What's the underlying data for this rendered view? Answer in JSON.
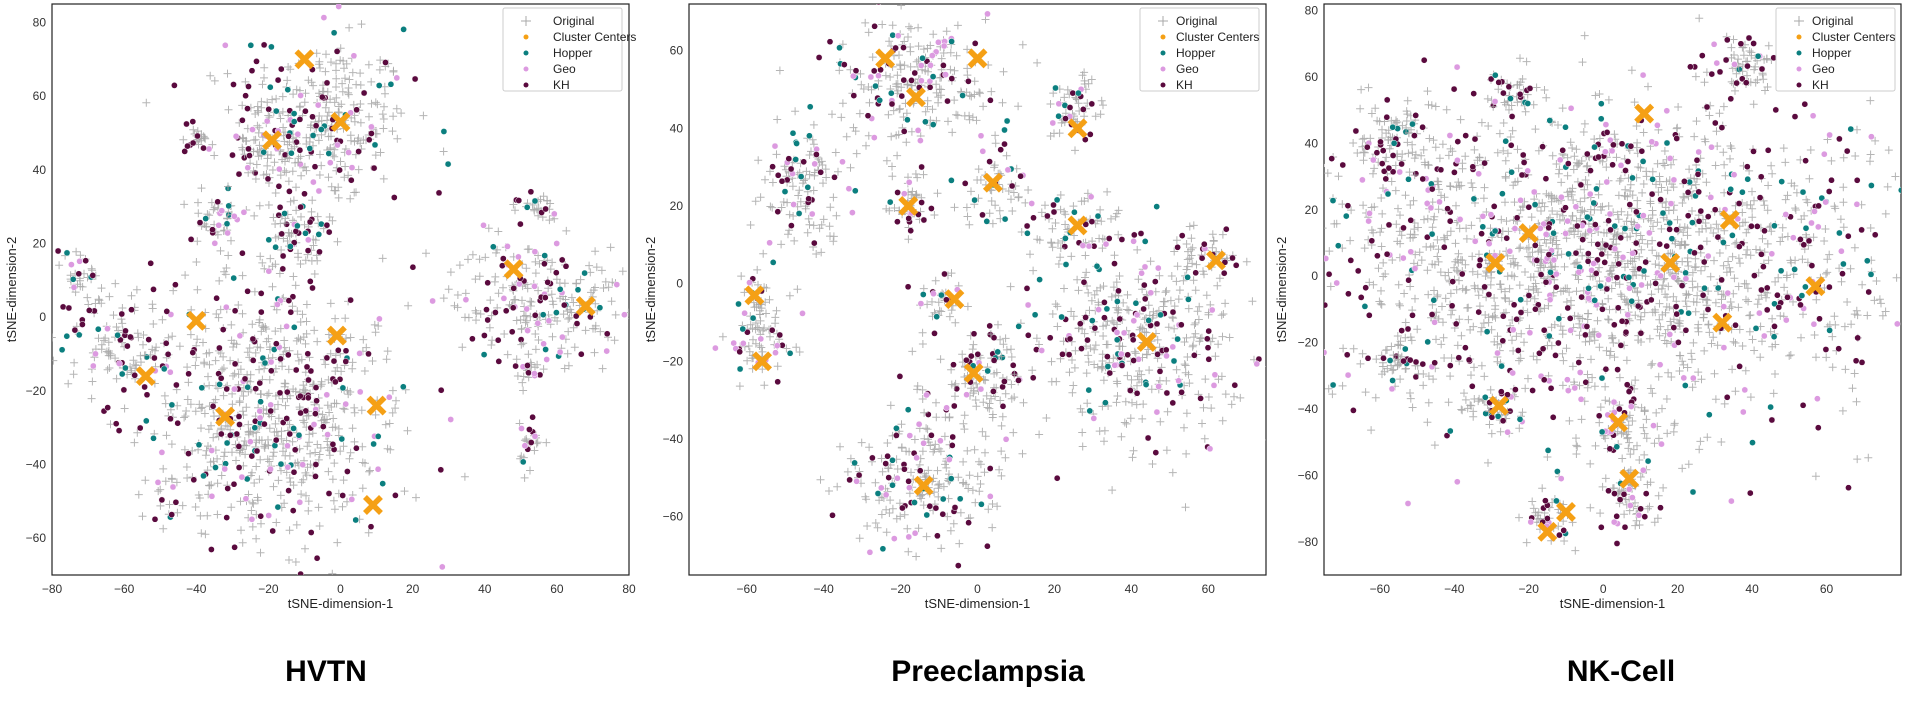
{
  "figure_type": "tSNE scatter panels",
  "chart_data": [
    {
      "type": "scatter",
      "panel_title": "HVTN",
      "xlabel": "tSNE-dimension-1",
      "ylabel": "tSNE-dimension-2",
      "xlim": [
        -80,
        80
      ],
      "ylim": [
        -70,
        85
      ],
      "xticks": [
        "−80",
        "−60",
        "−40",
        "−20",
        "0",
        "20",
        "40",
        "60",
        "80"
      ],
      "xtick_values": [
        -80,
        -60,
        -40,
        -20,
        0,
        20,
        40,
        60,
        80
      ],
      "yticks": [
        "−60",
        "−40",
        "−20",
        "0",
        "20",
        "40",
        "60",
        "80"
      ],
      "ytick_values": [
        -60,
        -40,
        -20,
        0,
        20,
        40,
        60,
        80
      ],
      "cluster_regions": [
        [
          -5,
          53,
          22,
          20
        ],
        [
          -20,
          45,
          8,
          8
        ],
        [
          -40,
          48,
          4,
          4
        ],
        [
          -34,
          26,
          6,
          8
        ],
        [
          -12,
          22,
          10,
          9
        ],
        [
          -72,
          12,
          5,
          6
        ],
        [
          -62,
          -8,
          12,
          10
        ],
        [
          -20,
          -25,
          32,
          32
        ],
        [
          55,
          5,
          22,
          14
        ],
        [
          53,
          -35,
          3,
          6
        ],
        [
          52,
          -15,
          3,
          5
        ],
        [
          55,
          30,
          6,
          4
        ]
      ],
      "series": [
        {
          "name": "Original",
          "marker": "plus",
          "color": "#a8a8a8"
        },
        {
          "name": "Cluster Centers",
          "marker": "x",
          "color": "#f5a015"
        },
        {
          "name": "Hopper",
          "marker": "circle",
          "color": "#0b7f7f"
        },
        {
          "name": "Geo",
          "marker": "circle",
          "color": "#dc9ae0"
        },
        {
          "name": "KH",
          "marker": "circle",
          "color": "#5a0a3e"
        }
      ],
      "cluster_centers": [
        [
          -10,
          70
        ],
        [
          0,
          53
        ],
        [
          -19,
          48
        ],
        [
          -40,
          -1
        ],
        [
          -1,
          -5
        ],
        [
          -54,
          -16
        ],
        [
          -32,
          -27
        ],
        [
          10,
          -24
        ],
        [
          9,
          -51
        ],
        [
          48,
          13
        ],
        [
          68,
          3
        ]
      ]
    },
    {
      "type": "scatter",
      "panel_title": "Preeclampsia",
      "xlabel": "tSNE-dimension-1",
      "ylabel": "tSNE-dimension-2",
      "xlim": [
        -75,
        75
      ],
      "ylim": [
        -75,
        72
      ],
      "xticks": [
        "−60",
        "−40",
        "−20",
        "0",
        "20",
        "40",
        "60"
      ],
      "xtick_values": [
        -60,
        -40,
        -20,
        0,
        20,
        40,
        60
      ],
      "yticks": [
        "−60",
        "−40",
        "−20",
        "0",
        "20",
        "40",
        "60"
      ],
      "ytick_values": [
        -60,
        -40,
        -20,
        0,
        20,
        40,
        60
      ],
      "cluster_regions": [
        [
          -15,
          52,
          20,
          15
        ],
        [
          -45,
          25,
          10,
          15
        ],
        [
          -18,
          20,
          6,
          8
        ],
        [
          5,
          25,
          8,
          8
        ],
        [
          25,
          45,
          8,
          8
        ],
        [
          25,
          14,
          10,
          8
        ],
        [
          -57,
          -12,
          8,
          14
        ],
        [
          -10,
          -5,
          6,
          6
        ],
        [
          0,
          -25,
          12,
          12
        ],
        [
          -15,
          -50,
          18,
          15
        ],
        [
          40,
          -15,
          25,
          22
        ],
        [
          60,
          8,
          8,
          6
        ]
      ],
      "series": [
        {
          "name": "Original",
          "marker": "plus",
          "color": "#a8a8a8"
        },
        {
          "name": "Cluster Centers",
          "marker": "x",
          "color": "#f5a015"
        },
        {
          "name": "Hopper",
          "marker": "circle",
          "color": "#0b7f7f"
        },
        {
          "name": "Geo",
          "marker": "circle",
          "color": "#dc9ae0"
        },
        {
          "name": "KH",
          "marker": "circle",
          "color": "#5a0a3e"
        }
      ],
      "cluster_centers": [
        [
          -24,
          58
        ],
        [
          0,
          58
        ],
        [
          -16,
          48
        ],
        [
          -18,
          20
        ],
        [
          4,
          26
        ],
        [
          26,
          40
        ],
        [
          26,
          15
        ],
        [
          62,
          6
        ],
        [
          -58,
          -3
        ],
        [
          -56,
          -20
        ],
        [
          -6,
          -4
        ],
        [
          -1,
          -23
        ],
        [
          -14,
          -52
        ],
        [
          44,
          -15
        ]
      ]
    },
    {
      "type": "scatter",
      "panel_title": "NK-Cell",
      "xlabel": "tSNE-dimension-1",
      "ylabel": "tSNE-dimension-2",
      "xlim": [
        -75,
        80
      ],
      "ylim": [
        -90,
        82
      ],
      "xticks": [
        "−60",
        "−40",
        "−20",
        "0",
        "20",
        "40",
        "60"
      ],
      "xtick_values": [
        -60,
        -40,
        -20,
        0,
        20,
        40,
        60
      ],
      "yticks": [
        "−80",
        "−60",
        "−40",
        "−20",
        "0",
        "20",
        "40",
        "60",
        "80"
      ],
      "ytick_values": [
        -80,
        -60,
        -40,
        -20,
        0,
        20,
        40,
        60,
        80
      ],
      "cluster_regions": [
        [
          0,
          5,
          65,
          40
        ],
        [
          -55,
          40,
          10,
          12
        ],
        [
          40,
          65,
          10,
          8
        ],
        [
          -25,
          55,
          8,
          6
        ],
        [
          -28,
          -40,
          8,
          6
        ],
        [
          5,
          -45,
          10,
          8
        ],
        [
          -14,
          -72,
          6,
          8
        ],
        [
          8,
          -65,
          8,
          10
        ],
        [
          -55,
          -25,
          8,
          6
        ]
      ],
      "series": [
        {
          "name": "Original",
          "marker": "plus",
          "color": "#a8a8a8"
        },
        {
          "name": "Cluster Centers",
          "marker": "x",
          "color": "#f5a015"
        },
        {
          "name": "Hopper",
          "marker": "circle",
          "color": "#0b7f7f"
        },
        {
          "name": "Geo",
          "marker": "circle",
          "color": "#dc9ae0"
        },
        {
          "name": "KH",
          "marker": "circle",
          "color": "#5a0a3e"
        }
      ],
      "cluster_centers": [
        [
          11,
          49
        ],
        [
          -20,
          13
        ],
        [
          -29,
          4
        ],
        [
          34,
          17
        ],
        [
          18,
          4
        ],
        [
          57,
          -3
        ],
        [
          32,
          -14
        ],
        [
          -28,
          -39
        ],
        [
          4,
          -44
        ],
        [
          7,
          -61
        ],
        [
          -10,
          -71
        ],
        [
          -15,
          -77
        ]
      ]
    }
  ]
}
